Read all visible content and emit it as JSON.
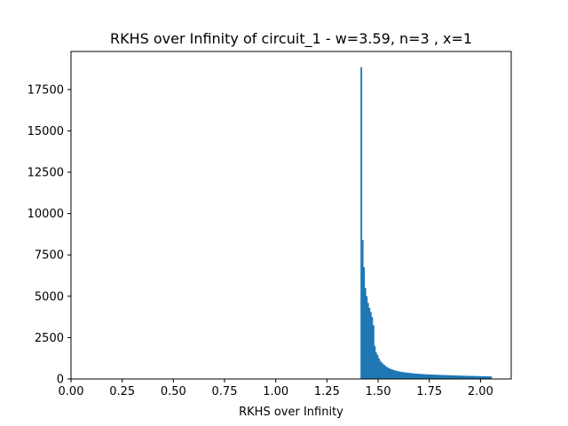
{
  "chart_data": {
    "type": "bar",
    "title": "RKHS over Infinity of circuit_1 - w=3.59, n=3 , x=1",
    "xlabel": "RKHS over Infinity",
    "ylabel": "",
    "xlim": [
      0.0,
      2.15
    ],
    "ylim": [
      0,
      19800
    ],
    "x_ticks": [
      "0.00",
      "0.25",
      "0.50",
      "0.75",
      "1.00",
      "1.25",
      "1.50",
      "1.75",
      "2.00"
    ],
    "y_ticks": [
      "0",
      "2500",
      "5000",
      "7500",
      "10000",
      "12500",
      "15000",
      "17500"
    ],
    "grid": false,
    "legend": "none",
    "bar_color": "#1f77b4",
    "bins": {
      "start": 1.414,
      "width": 0.0066,
      "values": [
        18850,
        8400,
        6750,
        5500,
        5000,
        4600,
        4300,
        4050,
        3750,
        3250,
        2000,
        1600,
        1450,
        1250,
        1100,
        1000,
        920,
        850,
        780,
        720,
        670,
        630,
        600,
        570,
        540,
        515,
        495,
        475,
        455,
        440,
        425,
        410,
        400,
        390,
        380,
        370,
        360,
        350,
        342,
        335,
        328,
        320,
        314,
        308,
        302,
        297,
        292,
        287,
        282,
        278,
        274,
        270,
        266,
        262,
        258,
        255,
        252,
        249,
        246,
        243,
        240,
        237,
        234,
        231,
        228,
        225,
        222,
        219,
        216,
        213,
        210,
        207,
        204,
        201,
        198,
        196,
        194,
        192,
        190,
        188,
        186,
        184,
        182,
        180,
        178,
        176,
        174,
        172,
        170,
        168,
        166,
        164,
        162,
        160,
        158,
        156,
        150
      ]
    }
  }
}
